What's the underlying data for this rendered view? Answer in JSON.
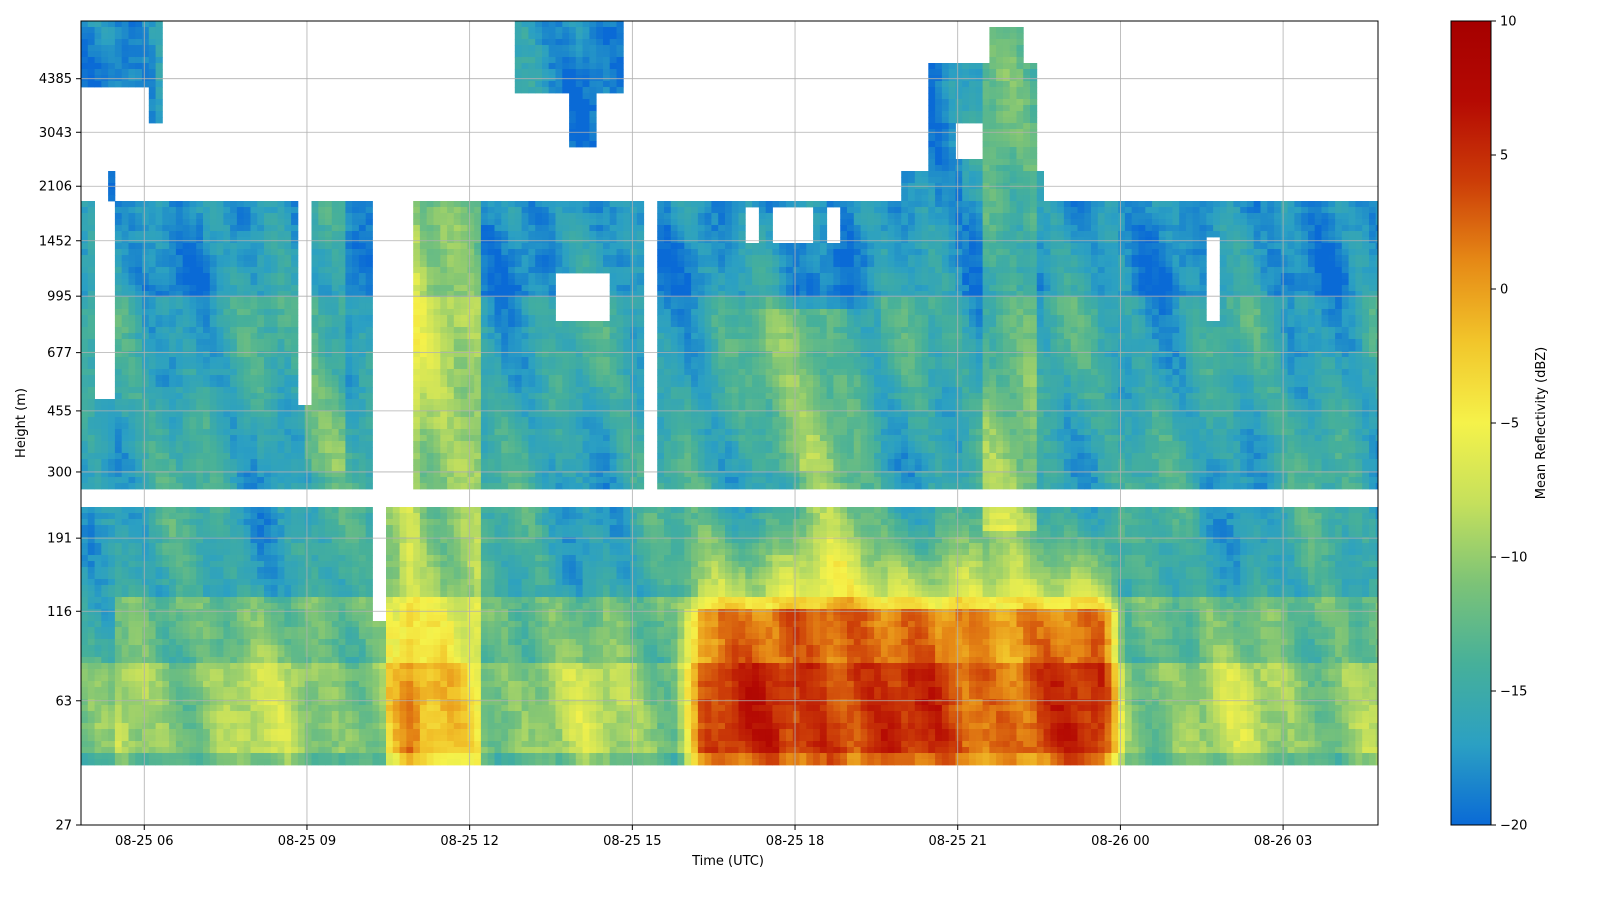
{
  "chart_data": {
    "type": "heatmap",
    "title": "",
    "xlabel": "Time (UTC)",
    "ylabel": "Height (m)",
    "colorbar_label": "Mean Reflectivity (dBZ)",
    "x_start": "08-25 04:50",
    "x_end": "08-26 04:45",
    "xlim": [
      "08-25 04:50",
      "08-26 04:45"
    ],
    "x_ticks": [
      "08-25 06",
      "08-25 09",
      "08-25 12",
      "08-25 15",
      "08-25 18",
      "08-25 21",
      "08-26 00",
      "08-26 03"
    ],
    "y_scale": "log",
    "ylim": [
      27,
      6500
    ],
    "y_ticks": [
      27,
      63,
      116,
      191,
      300,
      455,
      677,
      995,
      1452,
      2106,
      3043,
      4385
    ],
    "clim": [
      -20,
      10
    ],
    "colorbar_ticks": [
      10,
      5,
      0,
      -5,
      -10,
      -15,
      -20
    ],
    "colormap": [
      "#0a6ad6",
      "#2ba0c3",
      "#46b09a",
      "#7cc377",
      "#c5e05c",
      "#f5f24a",
      "#f2c62b",
      "#e68a16",
      "#cc3d08",
      "#b50a03",
      "#a50000"
    ],
    "grid": true,
    "legend": "colorbar-right",
    "notes": "Reflectivity mostly -18 to -10 dBZ below ~1.8 km; strong echo (0 to +8 dBZ) below ~120 m from ~16:00 to 00:00 UTC with a peak near 18:30 UTC; gap in data around 250 m; sparse cloud layers above 2 km near 06, 13-14 and 21-22 UTC"
  }
}
